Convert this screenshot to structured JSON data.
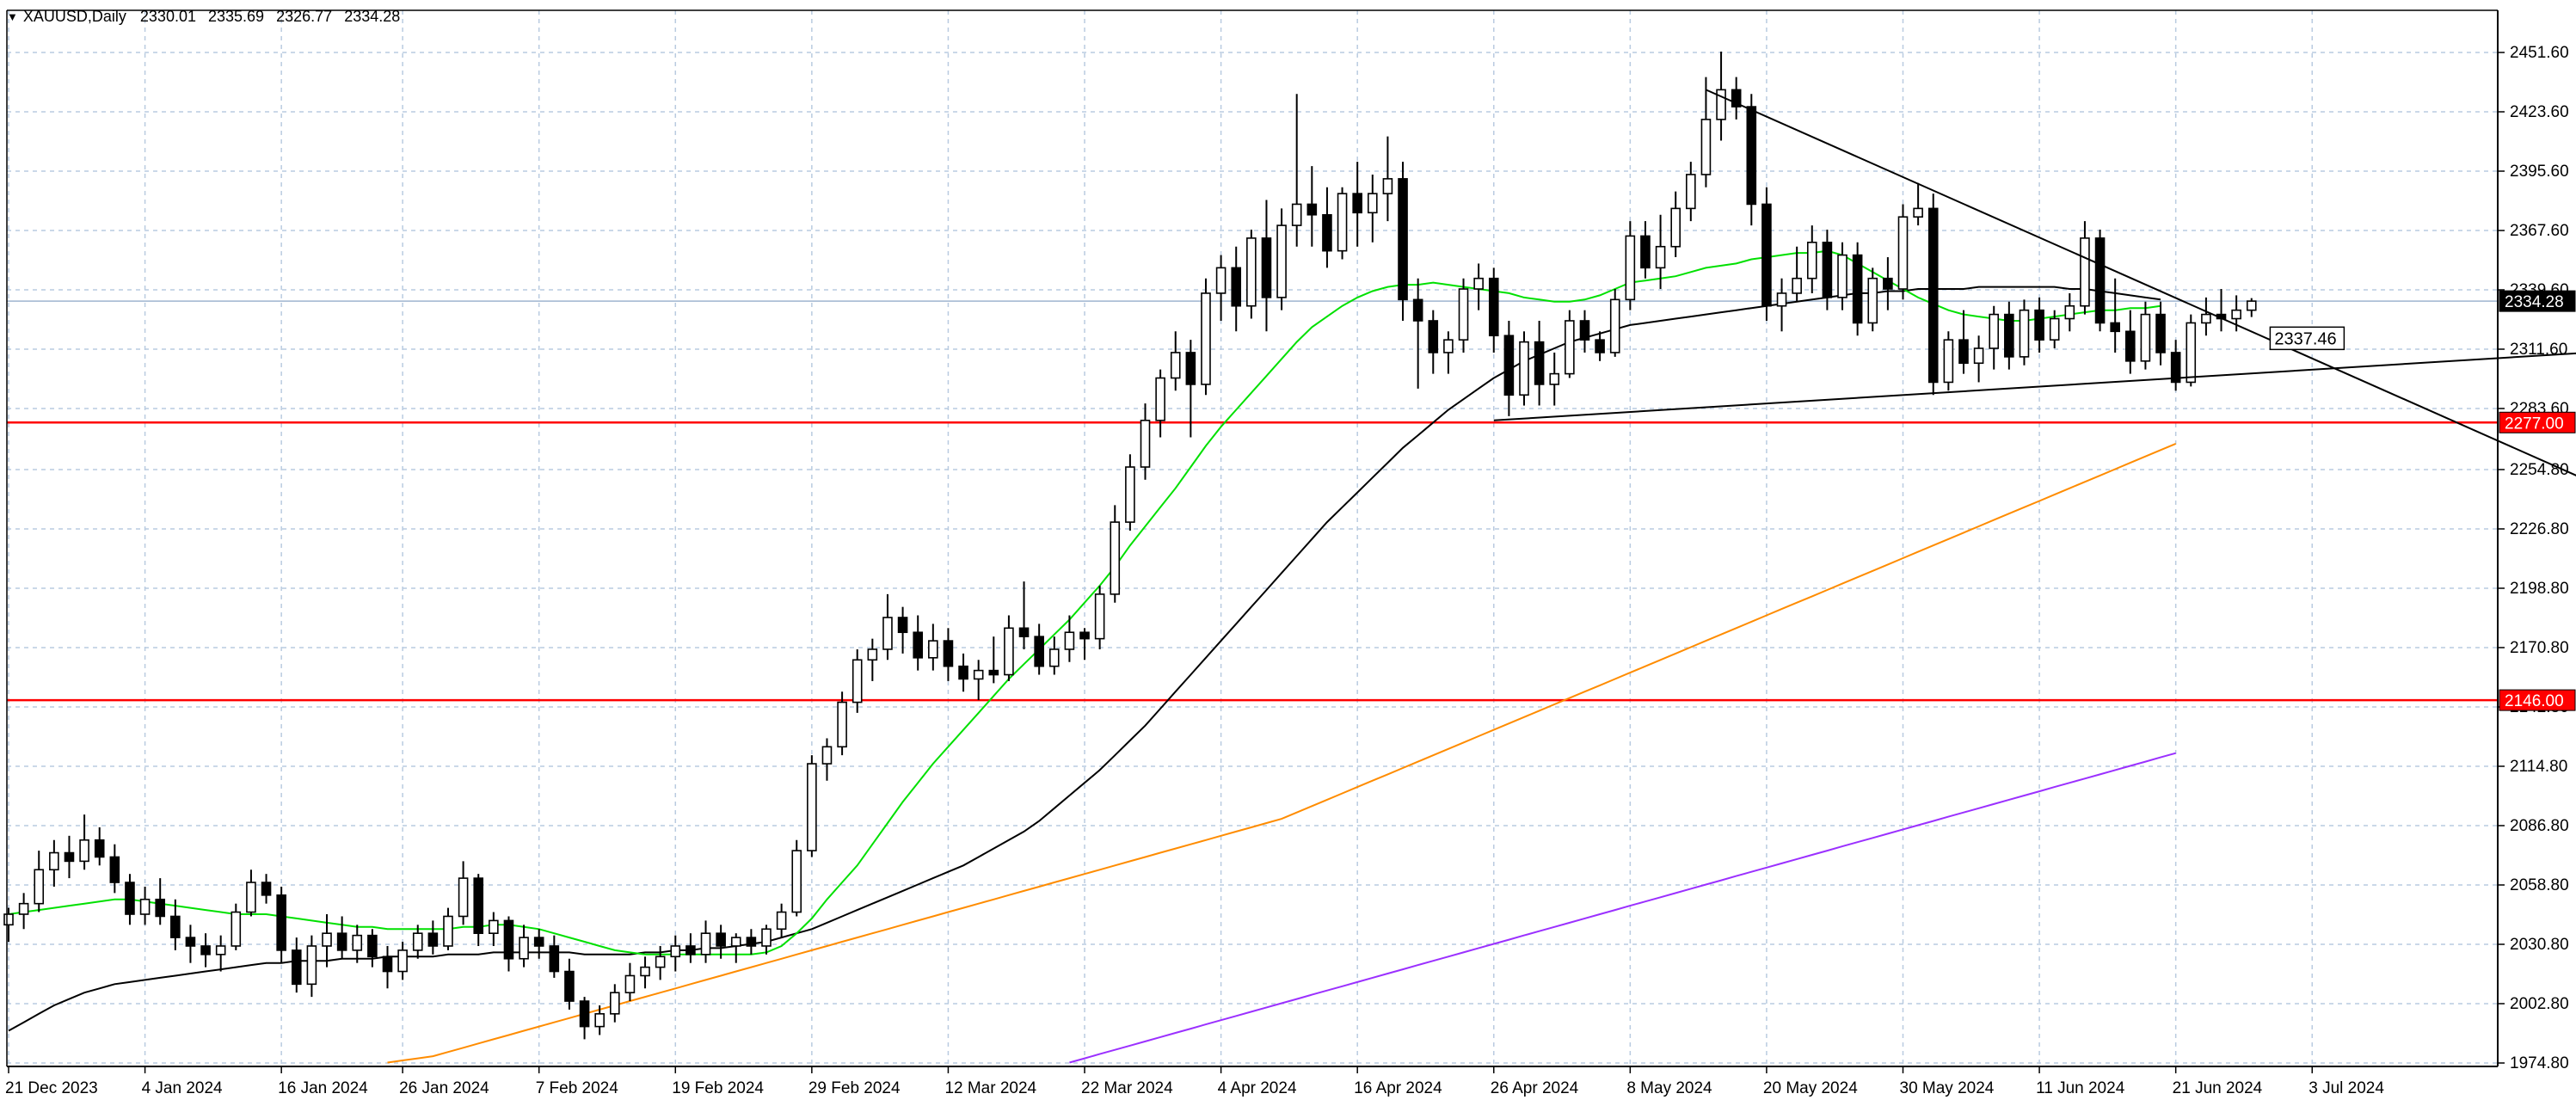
{
  "header": {
    "symbol_tf": "XAUUSD,Daily",
    "ohlc": [
      "2330.01",
      "2335.69",
      "2326.77",
      "2334.28"
    ]
  },
  "colors": {
    "background": "#ffffff",
    "grid": "#b9cbe0",
    "candle_up": "#ffffff",
    "candle_down": "#000000",
    "ma_fast": "#00e000",
    "ma_mid": "#000000",
    "ma_slow": "#ff8c00",
    "ma_long": "#9b30ff",
    "level_line": "#ff0000",
    "trend_line": "#000000"
  },
  "chart_data": {
    "type": "candlestick",
    "symbol": "XAUUSD",
    "timeframe": "Daily",
    "ylim": [
      1974.8,
      2470
    ],
    "y_ticks": [
      "2451.60",
      "2423.60",
      "2395.60",
      "2367.60",
      "2339.60",
      "2311.60",
      "2283.60",
      "2254.80",
      "2226.80",
      "2198.80",
      "2170.80",
      "2142.80",
      "2114.80",
      "2086.80",
      "2058.80",
      "2030.80",
      "2002.80",
      "1974.80"
    ],
    "x_tick_labels": [
      "21 Dec 2023",
      "4 Jan 2024",
      "16 Jan 2024",
      "26 Jan 2024",
      "7 Feb 2024",
      "19 Feb 2024",
      "29 Feb 2024",
      "12 Mar 2024",
      "22 Mar 2024",
      "4 Apr 2024",
      "16 Apr 2024",
      "26 Apr 2024",
      "8 May 2024",
      "20 May 2024",
      "30 May 2024",
      "11 Jun 2024",
      "21 Jun 2024",
      "3 Jul 2024"
    ],
    "x_tick_positions": [
      0,
      9,
      18,
      26,
      35,
      44,
      53,
      62,
      71,
      80,
      89,
      98,
      107,
      116,
      125,
      134,
      143,
      152
    ],
    "candles": [
      [
        2040,
        2048,
        2032,
        2045
      ],
      [
        2045,
        2055,
        2038,
        2050
      ],
      [
        2050,
        2075,
        2046,
        2066
      ],
      [
        2066,
        2080,
        2058,
        2074
      ],
      [
        2074,
        2082,
        2062,
        2070
      ],
      [
        2070,
        2092,
        2066,
        2080
      ],
      [
        2080,
        2086,
        2068,
        2072
      ],
      [
        2072,
        2078,
        2055,
        2060
      ],
      [
        2060,
        2064,
        2040,
        2045
      ],
      [
        2045,
        2058,
        2040,
        2052
      ],
      [
        2052,
        2062,
        2040,
        2044
      ],
      [
        2044,
        2052,
        2028,
        2034
      ],
      [
        2034,
        2040,
        2022,
        2030
      ],
      [
        2030,
        2036,
        2020,
        2026
      ],
      [
        2026,
        2035,
        2018,
        2030
      ],
      [
        2030,
        2050,
        2028,
        2046
      ],
      [
        2046,
        2066,
        2044,
        2060
      ],
      [
        2060,
        2064,
        2050,
        2054
      ],
      [
        2054,
        2058,
        2022,
        2028
      ],
      [
        2028,
        2034,
        2008,
        2012
      ],
      [
        2012,
        2035,
        2006,
        2030
      ],
      [
        2030,
        2045,
        2020,
        2036
      ],
      [
        2036,
        2044,
        2024,
        2028
      ],
      [
        2028,
        2040,
        2022,
        2035
      ],
      [
        2035,
        2038,
        2020,
        2025
      ],
      [
        2025,
        2030,
        2010,
        2018
      ],
      [
        2018,
        2032,
        2014,
        2028
      ],
      [
        2028,
        2040,
        2024,
        2036
      ],
      [
        2036,
        2042,
        2026,
        2030
      ],
      [
        2030,
        2048,
        2028,
        2044
      ],
      [
        2044,
        2070,
        2040,
        2062
      ],
      [
        2062,
        2064,
        2030,
        2036
      ],
      [
        2036,
        2046,
        2030,
        2042
      ],
      [
        2042,
        2044,
        2018,
        2024
      ],
      [
        2024,
        2040,
        2020,
        2034
      ],
      [
        2034,
        2038,
        2024,
        2030
      ],
      [
        2030,
        2035,
        2015,
        2018
      ],
      [
        2018,
        2024,
        2000,
        2004
      ],
      [
        2004,
        2006,
        1986,
        1992
      ],
      [
        1992,
        2002,
        1988,
        1998
      ],
      [
        1998,
        2012,
        1994,
        2008
      ],
      [
        2008,
        2022,
        2004,
        2016
      ],
      [
        2016,
        2025,
        2010,
        2020
      ],
      [
        2020,
        2030,
        2014,
        2025
      ],
      [
        2025,
        2035,
        2018,
        2030
      ],
      [
        2030,
        2036,
        2022,
        2026
      ],
      [
        2026,
        2042,
        2022,
        2036
      ],
      [
        2036,
        2040,
        2024,
        2030
      ],
      [
        2030,
        2036,
        2022,
        2034
      ],
      [
        2034,
        2038,
        2026,
        2030
      ],
      [
        2030,
        2040,
        2026,
        2038
      ],
      [
        2038,
        2050,
        2034,
        2046
      ],
      [
        2046,
        2080,
        2044,
        2075
      ],
      [
        2075,
        2120,
        2072,
        2116
      ],
      [
        2116,
        2128,
        2108,
        2124
      ],
      [
        2124,
        2150,
        2120,
        2145
      ],
      [
        2145,
        2170,
        2140,
        2165
      ],
      [
        2165,
        2175,
        2155,
        2170
      ],
      [
        2170,
        2196,
        2165,
        2185
      ],
      [
        2185,
        2190,
        2168,
        2178
      ],
      [
        2178,
        2186,
        2160,
        2166
      ],
      [
        2166,
        2182,
        2160,
        2174
      ],
      [
        2174,
        2180,
        2155,
        2162
      ],
      [
        2162,
        2168,
        2150,
        2156
      ],
      [
        2156,
        2165,
        2146,
        2160
      ],
      [
        2160,
        2176,
        2154,
        2158
      ],
      [
        2158,
        2186,
        2155,
        2180
      ],
      [
        2180,
        2202,
        2170,
        2176
      ],
      [
        2176,
        2182,
        2158,
        2162
      ],
      [
        2162,
        2176,
        2158,
        2170
      ],
      [
        2170,
        2186,
        2164,
        2178
      ],
      [
        2178,
        2180,
        2165,
        2175
      ],
      [
        2175,
        2200,
        2170,
        2196
      ],
      [
        2196,
        2238,
        2192,
        2230
      ],
      [
        2230,
        2262,
        2226,
        2256
      ],
      [
        2256,
        2286,
        2250,
        2278
      ],
      [
        2278,
        2302,
        2270,
        2298
      ],
      [
        2298,
        2320,
        2292,
        2310
      ],
      [
        2310,
        2316,
        2270,
        2295
      ],
      [
        2295,
        2345,
        2290,
        2338
      ],
      [
        2338,
        2356,
        2325,
        2350
      ],
      [
        2350,
        2360,
        2320,
        2332
      ],
      [
        2332,
        2368,
        2326,
        2364
      ],
      [
        2364,
        2382,
        2320,
        2336
      ],
      [
        2336,
        2378,
        2330,
        2370
      ],
      [
        2370,
        2432,
        2360,
        2380
      ],
      [
        2380,
        2398,
        2360,
        2375
      ],
      [
        2375,
        2388,
        2350,
        2358
      ],
      [
        2358,
        2388,
        2354,
        2385
      ],
      [
        2385,
        2400,
        2360,
        2376
      ],
      [
        2376,
        2394,
        2362,
        2385
      ],
      [
        2385,
        2412,
        2372,
        2392
      ],
      [
        2392,
        2400,
        2325,
        2335
      ],
      [
        2335,
        2345,
        2293,
        2325
      ],
      [
        2325,
        2330,
        2300,
        2310
      ],
      [
        2310,
        2320,
        2300,
        2316
      ],
      [
        2316,
        2345,
        2310,
        2340
      ],
      [
        2340,
        2352,
        2330,
        2345
      ],
      [
        2345,
        2350,
        2310,
        2318
      ],
      [
        2318,
        2325,
        2280,
        2290
      ],
      [
        2290,
        2320,
        2285,
        2315
      ],
      [
        2315,
        2325,
        2285,
        2295
      ],
      [
        2295,
        2310,
        2285,
        2300
      ],
      [
        2300,
        2330,
        2298,
        2325
      ],
      [
        2325,
        2330,
        2310,
        2316
      ],
      [
        2316,
        2320,
        2306,
        2310
      ],
      [
        2310,
        2340,
        2308,
        2335
      ],
      [
        2335,
        2372,
        2330,
        2365
      ],
      [
        2365,
        2372,
        2345,
        2350
      ],
      [
        2350,
        2375,
        2340,
        2360
      ],
      [
        2360,
        2386,
        2355,
        2378
      ],
      [
        2378,
        2400,
        2372,
        2394
      ],
      [
        2394,
        2440,
        2388,
        2420
      ],
      [
        2420,
        2452,
        2410,
        2434
      ],
      [
        2434,
        2440,
        2420,
        2426
      ],
      [
        2426,
        2432,
        2370,
        2380
      ],
      [
        2380,
        2388,
        2325,
        2332
      ],
      [
        2332,
        2345,
        2320,
        2338
      ],
      [
        2338,
        2360,
        2334,
        2345
      ],
      [
        2345,
        2370,
        2338,
        2362
      ],
      [
        2362,
        2368,
        2330,
        2336
      ],
      [
        2336,
        2362,
        2330,
        2356
      ],
      [
        2356,
        2362,
        2318,
        2324
      ],
      [
        2324,
        2350,
        2320,
        2345
      ],
      [
        2345,
        2355,
        2330,
        2340
      ],
      [
        2340,
        2380,
        2335,
        2374
      ],
      [
        2374,
        2390,
        2370,
        2378
      ],
      [
        2378,
        2385,
        2290,
        2296
      ],
      [
        2296,
        2320,
        2292,
        2316
      ],
      [
        2316,
        2330,
        2300,
        2305
      ],
      [
        2305,
        2318,
        2296,
        2312
      ],
      [
        2312,
        2332,
        2302,
        2328
      ],
      [
        2328,
        2334,
        2302,
        2308
      ],
      [
        2308,
        2335,
        2304,
        2330
      ],
      [
        2330,
        2336,
        2310,
        2316
      ],
      [
        2316,
        2330,
        2312,
        2326
      ],
      [
        2326,
        2338,
        2320,
        2332
      ],
      [
        2332,
        2372,
        2328,
        2364
      ],
      [
        2364,
        2368,
        2320,
        2324
      ],
      [
        2324,
        2345,
        2310,
        2320
      ],
      [
        2320,
        2330,
        2300,
        2306
      ],
      [
        2306,
        2334,
        2302,
        2328
      ],
      [
        2328,
        2334,
        2304,
        2310
      ],
      [
        2310,
        2316,
        2292,
        2296
      ],
      [
        2296,
        2328,
        2294,
        2324
      ],
      [
        2324,
        2336,
        2318,
        2328
      ],
      [
        2328,
        2340,
        2320,
        2326
      ],
      [
        2326,
        2337,
        2320,
        2330
      ],
      [
        2330,
        2335.69,
        2326.77,
        2334.28
      ]
    ],
    "ma_fast": [
      2045,
      2046,
      2047,
      2048,
      2049,
      2050,
      2051,
      2052,
      2052,
      2051,
      2050,
      2049,
      2048,
      2047,
      2046,
      2045,
      2045,
      2045,
      2044,
      2043,
      2042,
      2041,
      2040,
      2039,
      2039,
      2038,
      2038,
      2038,
      2038,
      2038,
      2039,
      2039,
      2040,
      2040,
      2039,
      2038,
      2036,
      2034,
      2032,
      2030,
      2028,
      2027,
      2026,
      2026,
      2026,
      2026,
      2026,
      2026,
      2026,
      2026,
      2027,
      2030,
      2036,
      2043,
      2052,
      2060,
      2068,
      2078,
      2088,
      2098,
      2107,
      2116,
      2124,
      2132,
      2140,
      2148,
      2156,
      2163,
      2170,
      2177,
      2184,
      2192,
      2200,
      2209,
      2219,
      2228,
      2237,
      2246,
      2256,
      2266,
      2275,
      2283,
      2291,
      2299,
      2307,
      2315,
      2322,
      2327,
      2332,
      2336,
      2339,
      2341,
      2342,
      2342,
      2343,
      2342,
      2341,
      2340,
      2339,
      2338,
      2336,
      2335,
      2334,
      2334,
      2335,
      2337,
      2340,
      2343,
      2344,
      2345,
      2346,
      2348,
      2350,
      2351,
      2352,
      2354,
      2355,
      2356,
      2357,
      2357,
      2358,
      2356,
      2352,
      2348,
      2344,
      2340,
      2336,
      2333,
      2330,
      2328,
      2327,
      2326,
      2325,
      2325,
      2326,
      2327,
      2328,
      2329,
      2330,
      2330,
      2331,
      2331,
      2332
    ],
    "ma_mid": [
      1990,
      1994,
      1998,
      2002,
      2005,
      2008,
      2010,
      2012,
      2013,
      2014,
      2015,
      2016,
      2017,
      2018,
      2019,
      2020,
      2021,
      2022,
      2022,
      2023,
      2023,
      2023,
      2024,
      2024,
      2024,
      2025,
      2025,
      2025,
      2025,
      2026,
      2026,
      2026,
      2027,
      2027,
      2027,
      2027,
      2027,
      2027,
      2026,
      2026,
      2026,
      2026,
      2027,
      2027,
      2028,
      2028,
      2029,
      2029,
      2030,
      2031,
      2032,
      2034,
      2036,
      2038,
      2041,
      2044,
      2047,
      2050,
      2053,
      2056,
      2059,
      2062,
      2065,
      2068,
      2072,
      2076,
      2080,
      2084,
      2089,
      2095,
      2101,
      2107,
      2113,
      2120,
      2127,
      2134,
      2142,
      2150,
      2158,
      2166,
      2174,
      2182,
      2190,
      2198,
      2206,
      2214,
      2222,
      2230,
      2237,
      2244,
      2251,
      2258,
      2265,
      2271,
      2277,
      2283,
      2288,
      2293,
      2298,
      2302,
      2306,
      2309,
      2312,
      2315,
      2317,
      2319,
      2321,
      2323,
      2324,
      2325,
      2326,
      2327,
      2328,
      2329,
      2330,
      2331,
      2332,
      2333,
      2334,
      2335,
      2336,
      2337,
      2338,
      2338,
      2339,
      2339,
      2340,
      2340,
      2340,
      2340,
      2341,
      2341,
      2341,
      2341,
      2341,
      2341,
      2340,
      2340,
      2339,
      2338,
      2337,
      2336,
      2335
    ],
    "ma_slow": [
      1975,
      1976,
      1977,
      1978,
      1980,
      1982,
      1984,
      1986,
      1988,
      1990,
      1992,
      1994,
      1996,
      1998,
      2000,
      2002,
      2004,
      2006,
      2008,
      2010,
      2012,
      2014,
      2016,
      2018,
      2020,
      2022,
      2024,
      2026,
      2028,
      2030,
      2032,
      2034,
      2036,
      2038,
      2040,
      2042,
      2044,
      2046,
      2048,
      2050,
      2052,
      2054,
      2056,
      2058,
      2060,
      2062,
      2064,
      2066,
      2068,
      2070,
      2072,
      2074,
      2076,
      2078,
      2080,
      2082,
      2084,
      2086,
      2088,
      2090,
      2093,
      2096,
      2099,
      2102,
      2105,
      2108,
      2111,
      2114,
      2117,
      2120,
      2123,
      2126,
      2129,
      2132,
      2135,
      2138,
      2141,
      2144,
      2147,
      2150,
      2153,
      2156,
      2159,
      2162,
      2165,
      2168,
      2171,
      2174,
      2177,
      2180,
      2183,
      2186,
      2189,
      2192,
      2195,
      2198,
      2201,
      2204,
      2207,
      2210,
      2213,
      2216,
      2219,
      2222,
      2225,
      2228,
      2231,
      2234,
      2237,
      2240,
      2243,
      2246,
      2249,
      2252,
      2255,
      2258,
      2261,
      2264,
      2267
    ],
    "ma_slow_start": 25,
    "ma_long": [
      1975,
      1977,
      1979,
      1981,
      1983,
      1985,
      1987,
      1989,
      1991,
      1993,
      1995,
      1997,
      1999,
      2001,
      2003,
      2005,
      2007,
      2009,
      2011,
      2013,
      2015,
      2017,
      2019,
      2021,
      2023,
      2025,
      2027,
      2029,
      2031,
      2033,
      2035,
      2037,
      2039,
      2041,
      2043,
      2045,
      2047,
      2049,
      2051,
      2053,
      2055,
      2057,
      2059,
      2061,
      2063,
      2065,
      2067,
      2069,
      2071,
      2073,
      2075,
      2077,
      2079,
      2081,
      2083,
      2085,
      2087,
      2089,
      2091,
      2093,
      2095,
      2097,
      2099,
      2101,
      2103,
      2105,
      2107,
      2109,
      2111,
      2113,
      2115,
      2117,
      2119,
      2121
    ],
    "ma_long_start": 70,
    "levels": [
      {
        "price": 2277.0,
        "label": "2277.00"
      },
      {
        "price": 2146.0,
        "label": "2146.00"
      }
    ],
    "trend_lines": [
      {
        "from": [
          112,
          2434
        ],
        "to": [
          177,
          2228
        ]
      },
      {
        "from": [
          98,
          2278
        ],
        "to": [
          177,
          2313
        ]
      }
    ],
    "current_price": "2334.28",
    "trendline_price_label": "2337.46"
  }
}
